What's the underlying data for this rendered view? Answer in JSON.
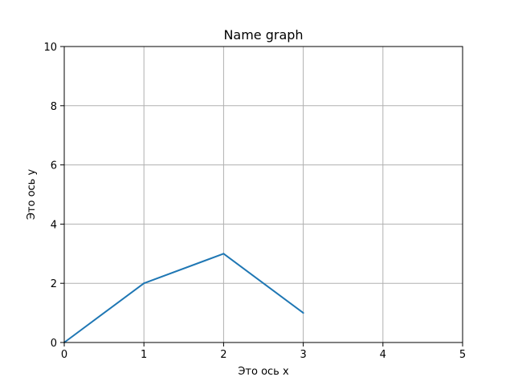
{
  "chart_data": {
    "type": "line",
    "title": "Name graph",
    "xlabel": "Это ось x",
    "ylabel": "Это ось y",
    "xlim": [
      0,
      5
    ],
    "ylim": [
      0,
      10
    ],
    "xticks": [
      0,
      1,
      2,
      3,
      4,
      5
    ],
    "yticks": [
      0,
      2,
      4,
      6,
      8,
      10
    ],
    "grid": true,
    "colors": {
      "line": "#1f77b4"
    },
    "series": [
      {
        "x": [
          0,
          1,
          2,
          3
        ],
        "y": [
          0,
          2,
          3,
          1
        ]
      }
    ]
  }
}
